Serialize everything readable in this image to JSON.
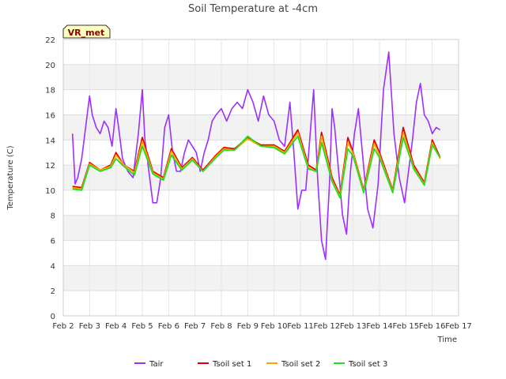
{
  "chart_data": {
    "type": "line",
    "title": "Soil Temperature at -4cm",
    "xlabel": "Time",
    "ylabel": "Temperature (C)",
    "badge": "VR_met",
    "xlim": [
      2,
      17
    ],
    "ylim": [
      0,
      22
    ],
    "x_ticks": [
      2,
      3,
      4,
      5,
      6,
      7,
      8,
      9,
      10,
      11,
      12,
      13,
      14,
      15,
      16,
      17
    ],
    "x_tick_labels": [
      "Feb 2",
      "Feb 3",
      "Feb 4",
      "Feb 5",
      "Feb 6",
      "Feb 7",
      "Feb 8",
      "Feb 9",
      "Feb 10",
      "Feb 11",
      "Feb 12",
      "Feb 13",
      "Feb 14",
      "Feb 15",
      "Feb 16",
      "Feb 17"
    ],
    "y_ticks": [
      0,
      2,
      4,
      6,
      8,
      10,
      12,
      14,
      16,
      18,
      20,
      22
    ],
    "grid": true,
    "legend_position": "bottom",
    "series": [
      {
        "name": "Tair",
        "color": "#9b30ff",
        "x": [
          2.35,
          2.45,
          2.55,
          2.7,
          2.85,
          3.0,
          3.1,
          3.25,
          3.4,
          3.55,
          3.7,
          3.85,
          4.0,
          4.1,
          4.25,
          4.45,
          4.65,
          4.85,
          5.0,
          5.1,
          5.25,
          5.4,
          5.55,
          5.7,
          5.85,
          6.0,
          6.15,
          6.3,
          6.45,
          6.6,
          6.75,
          6.9,
          7.05,
          7.2,
          7.35,
          7.5,
          7.65,
          7.8,
          8.0,
          8.2,
          8.4,
          8.6,
          8.8,
          9.0,
          9.2,
          9.4,
          9.6,
          9.8,
          10.0,
          10.2,
          10.4,
          10.6,
          10.75,
          10.9,
          11.05,
          11.2,
          11.35,
          11.5,
          11.65,
          11.8,
          11.95,
          12.1,
          12.2,
          12.3,
          12.45,
          12.6,
          12.75,
          12.9,
          13.05,
          13.2,
          13.35,
          13.55,
          13.75,
          13.95,
          14.15,
          14.35,
          14.55,
          14.75,
          14.95,
          15.1,
          15.25,
          15.4,
          15.55,
          15.7,
          15.85,
          16.0,
          16.15,
          16.3
        ],
        "values": [
          14.5,
          10.5,
          11.0,
          12.5,
          15.0,
          17.5,
          16.0,
          15.0,
          14.5,
          15.5,
          15.0,
          13.5,
          16.5,
          15.0,
          12.5,
          11.5,
          11.0,
          14.5,
          18.0,
          14.0,
          11.5,
          9.0,
          9.0,
          11.0,
          15.0,
          16.0,
          13.0,
          11.5,
          11.5,
          13.0,
          14.0,
          13.5,
          13.0,
          11.5,
          13.0,
          14.0,
          15.5,
          16.0,
          16.5,
          15.5,
          16.5,
          17.0,
          16.5,
          18.0,
          17.0,
          15.5,
          17.5,
          16.0,
          15.5,
          14.0,
          13.5,
          17.0,
          13.0,
          8.5,
          10.0,
          10.0,
          14.0,
          18.0,
          11.0,
          6.0,
          4.5,
          10.5,
          16.5,
          15.0,
          11.5,
          8.0,
          6.5,
          11.5,
          14.5,
          16.5,
          13.0,
          8.5,
          7.0,
          10.5,
          18.0,
          21.0,
          14.5,
          11.0,
          9.0,
          11.5,
          14.0,
          17.0,
          18.5,
          16.0,
          15.5,
          14.5,
          15.0,
          14.8
        ]
      },
      {
        "name": "Tsoil set 1",
        "color": "#e00000",
        "x": [
          2.35,
          2.7,
          3.0,
          3.4,
          3.8,
          4.0,
          4.3,
          4.7,
          5.0,
          5.4,
          5.8,
          6.1,
          6.5,
          6.9,
          7.3,
          7.8,
          8.1,
          8.5,
          9.0,
          9.5,
          10.0,
          10.4,
          10.9,
          11.3,
          11.6,
          11.8,
          12.2,
          12.5,
          12.8,
          13.0,
          13.4,
          13.8,
          14.0,
          14.5,
          14.9,
          15.3,
          15.7,
          16.0,
          16.3
        ],
        "values": [
          10.3,
          10.2,
          12.2,
          11.6,
          12.0,
          13.0,
          12.0,
          11.5,
          14.2,
          11.5,
          11.0,
          13.3,
          11.8,
          12.6,
          11.6,
          12.8,
          13.4,
          13.3,
          14.2,
          13.6,
          13.6,
          13.1,
          14.8,
          12.0,
          11.6,
          14.6,
          11.0,
          9.6,
          14.2,
          13.0,
          10.0,
          14.0,
          13.0,
          10.0,
          15.0,
          12.0,
          10.6,
          14.0,
          12.6
        ]
      },
      {
        "name": "Tsoil set 2",
        "color": "#ffa500",
        "x": [
          2.35,
          2.7,
          3.0,
          3.4,
          3.8,
          4.0,
          4.3,
          4.7,
          5.0,
          5.4,
          5.8,
          6.1,
          6.5,
          6.9,
          7.3,
          7.8,
          8.1,
          8.5,
          9.0,
          9.5,
          10.0,
          10.4,
          10.9,
          11.3,
          11.6,
          11.8,
          12.2,
          12.5,
          12.8,
          13.0,
          13.4,
          13.8,
          14.0,
          14.5,
          14.9,
          15.3,
          15.7,
          16.0,
          16.3
        ],
        "values": [
          10.2,
          10.1,
          12.1,
          11.6,
          11.9,
          12.8,
          12.0,
          11.4,
          13.9,
          11.4,
          10.9,
          13.1,
          11.7,
          12.5,
          11.5,
          12.7,
          13.3,
          13.2,
          14.1,
          13.5,
          13.5,
          13.0,
          14.6,
          11.8,
          11.5,
          14.3,
          10.8,
          9.5,
          13.8,
          12.9,
          9.9,
          13.7,
          12.8,
          9.9,
          14.6,
          11.8,
          10.5,
          13.8,
          12.5
        ]
      },
      {
        "name": "Tsoil set 3",
        "color": "#22dd22",
        "x": [
          2.35,
          2.7,
          3.0,
          3.4,
          3.8,
          4.0,
          4.3,
          4.7,
          5.0,
          5.4,
          5.8,
          6.1,
          6.5,
          6.9,
          7.3,
          7.8,
          8.1,
          8.5,
          9.0,
          9.5,
          10.0,
          10.4,
          10.9,
          11.3,
          11.6,
          11.8,
          12.2,
          12.5,
          12.8,
          13.0,
          13.4,
          13.8,
          14.0,
          14.5,
          14.9,
          15.3,
          15.7,
          16.0,
          16.3
        ],
        "values": [
          10.1,
          10.0,
          12.0,
          11.5,
          11.8,
          12.5,
          11.9,
          11.2,
          13.5,
          11.3,
          10.8,
          12.8,
          11.6,
          12.4,
          11.5,
          12.6,
          13.2,
          13.2,
          14.3,
          13.5,
          13.4,
          12.9,
          14.3,
          11.7,
          11.5,
          13.8,
          10.7,
          9.4,
          13.3,
          12.7,
          9.8,
          13.3,
          12.6,
          9.8,
          14.2,
          11.7,
          10.4,
          13.6,
          12.6
        ]
      }
    ]
  }
}
